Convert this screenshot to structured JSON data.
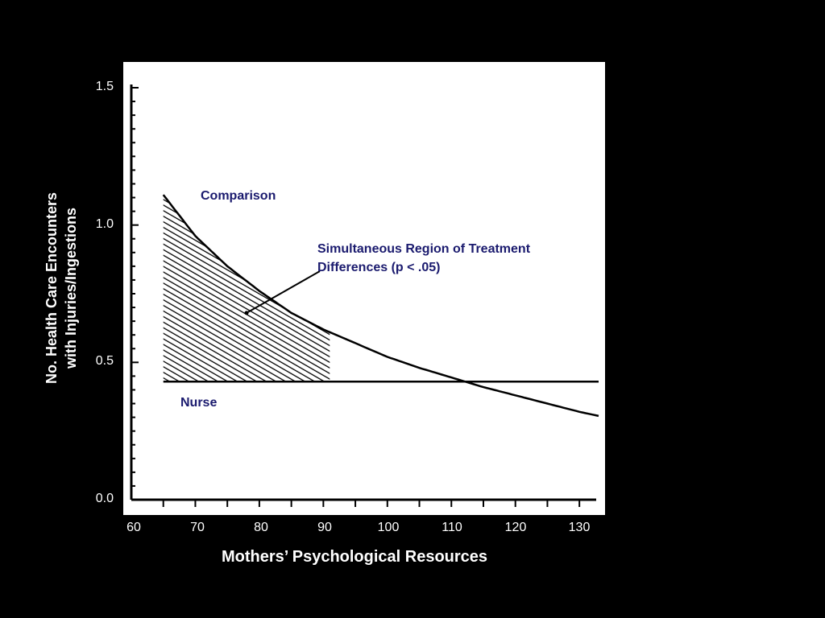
{
  "chart_data": {
    "type": "line",
    "title": "",
    "xlabel": "Mothers’ Psychological Resources",
    "ylabel_lines": [
      "No. Health Care Encounters",
      "with Injuries/Ingestions"
    ],
    "xlim": [
      60,
      133
    ],
    "ylim": [
      0.0,
      1.5
    ],
    "x_ticks": [
      "60",
      "70",
      "80",
      "90",
      "100",
      "110",
      "120",
      "130"
    ],
    "y_ticks": [
      "0.0",
      "0.5",
      "1.0",
      "1.5"
    ],
    "series": [
      {
        "name": "Comparison",
        "x": [
          65,
          70,
          75,
          80,
          85,
          90,
          95,
          100,
          105,
          110,
          115,
          120,
          125,
          130,
          133
        ],
        "y": [
          1.11,
          0.96,
          0.85,
          0.76,
          0.68,
          0.62,
          0.57,
          0.52,
          0.48,
          0.445,
          0.41,
          0.38,
          0.35,
          0.32,
          0.305
        ]
      },
      {
        "name": "Nurse",
        "x": [
          65,
          133
        ],
        "y": [
          0.43,
          0.43
        ]
      }
    ],
    "shaded_region": {
      "x_from": 65,
      "x_to": 91
    },
    "annotation": {
      "lines": [
        "Simultaneous Region of Treatment",
        "Differences (p < .05)"
      ],
      "points_to": {
        "x": 78,
        "y": 0.68
      }
    },
    "grid": false,
    "legend": "none"
  },
  "colors": {
    "background": "#000000",
    "panel": "#ffffff",
    "ink": "#000000",
    "label_navy": "#1a1a6e",
    "tick_text": "#ffffff"
  }
}
